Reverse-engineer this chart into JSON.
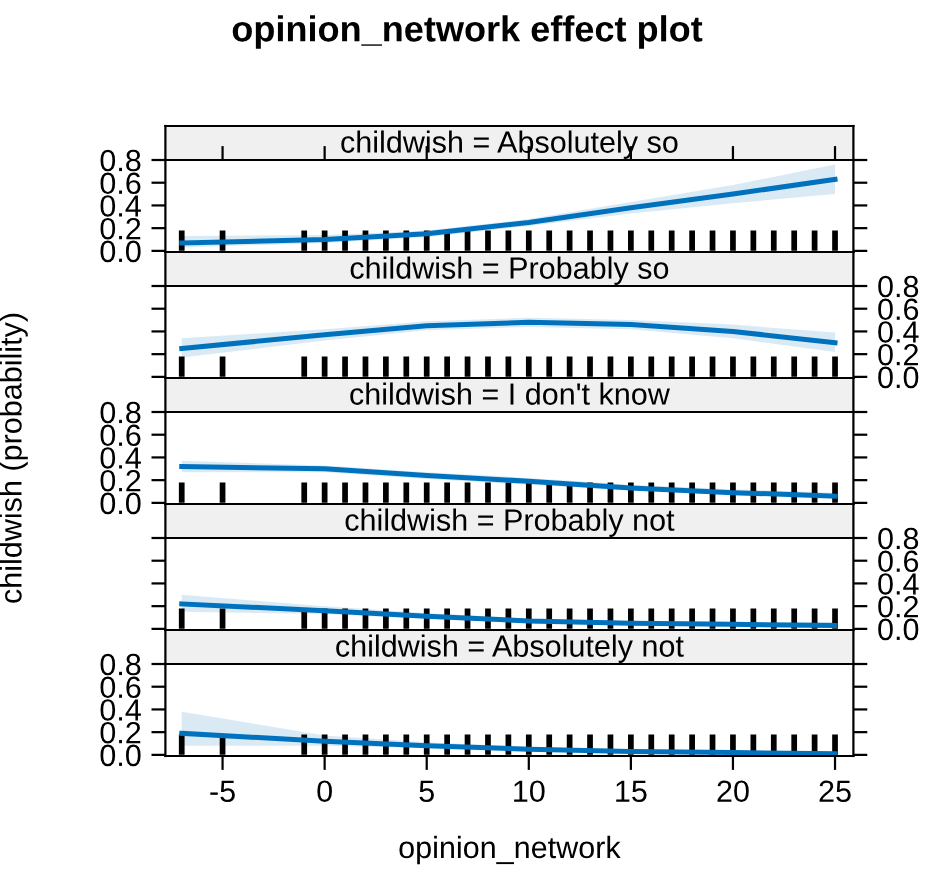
{
  "chart_data": [
    {
      "type": "line",
      "title": "opinion_network effect plot",
      "subtitle": "childwish = Absolutely so",
      "xlim": [
        -7.8,
        25.9
      ],
      "ylim": [
        -0.01,
        0.8
      ],
      "yticks": [
        {
          "value": 0,
          "label": "0.0"
        },
        {
          "value": 0.2,
          "label": "0.2"
        },
        {
          "value": 0.4,
          "label": "0.4"
        },
        {
          "value": 0.6,
          "label": "0.6"
        },
        {
          "value": 0.8,
          "label": "0.8"
        }
      ],
      "tick_labels": "y",
      "series": [
        {
          "color": "#0072bd",
          "x": [
            -7,
            0,
            5,
            10,
            15,
            20,
            25
          ],
          "values": [
            0.07,
            0.1,
            0.15,
            0.25,
            0.38,
            0.5,
            0.63
          ],
          "lower": [
            0.03,
            0.07,
            0.12,
            0.22,
            0.33,
            0.42,
            0.5
          ],
          "upper": [
            0.13,
            0.14,
            0.18,
            0.28,
            0.43,
            0.58,
            0.76
          ]
        },
        {
          "type": "bar",
          "color": "#000000",
          "x": [
            -7,
            -5,
            -1,
            0,
            1,
            2,
            3,
            4,
            5,
            6,
            7,
            8,
            9,
            10,
            11,
            12,
            13,
            14,
            15,
            16,
            17,
            18,
            19,
            20,
            21,
            22,
            23,
            24,
            25
          ],
          "values": [
            0.18,
            0.18,
            0.18,
            0.18,
            0.18,
            0.18,
            0.18,
            0.18,
            0.18,
            0.18,
            0.18,
            0.18,
            0.18,
            0.18,
            0.18,
            0.18,
            0.18,
            0.18,
            0.18,
            0.18,
            0.18,
            0.18,
            0.18,
            0.18,
            0.18,
            0.18,
            0.18,
            0.18,
            0.18
          ]
        }
      ]
    },
    {
      "type": "line",
      "subtitle": "childwish = Probably so",
      "xlim": [
        -7.8,
        25.9
      ],
      "y2lim": [
        -0.01,
        0.8
      ],
      "y2ticks": [
        {
          "value": 0,
          "label": "0.0"
        },
        {
          "value": 0.2,
          "label": "0.2"
        },
        {
          "value": 0.4,
          "label": "0.4"
        },
        {
          "value": 0.6,
          "label": "0.6"
        },
        {
          "value": 0.8,
          "label": "0.8"
        }
      ],
      "tick_labels": "y",
      "series": [
        {
          "color": "#0072bd",
          "axis": "y2",
          "x": [
            -7,
            0,
            5,
            10,
            15,
            20,
            25
          ],
          "values": [
            0.25,
            0.37,
            0.45,
            0.48,
            0.46,
            0.4,
            0.3
          ],
          "lower": [
            0.17,
            0.32,
            0.41,
            0.44,
            0.42,
            0.34,
            0.22
          ],
          "upper": [
            0.34,
            0.42,
            0.49,
            0.52,
            0.5,
            0.46,
            0.39
          ]
        },
        {
          "type": "bar",
          "axis": "y2",
          "color": "#000000",
          "x": [
            -7,
            -5,
            -1,
            0,
            1,
            2,
            3,
            4,
            5,
            6,
            7,
            8,
            9,
            10,
            11,
            12,
            13,
            14,
            15,
            16,
            17,
            18,
            19,
            20,
            21,
            22,
            23,
            24,
            25
          ],
          "values": [
            0.18,
            0.18,
            0.18,
            0.18,
            0.18,
            0.18,
            0.18,
            0.18,
            0.18,
            0.18,
            0.18,
            0.18,
            0.18,
            0.18,
            0.18,
            0.18,
            0.18,
            0.18,
            0.18,
            0.18,
            0.18,
            0.18,
            0.18,
            0.18,
            0.18,
            0.18,
            0.18,
            0.18,
            0.18
          ]
        }
      ]
    },
    {
      "type": "line",
      "subtitle": "childwish = I don't know",
      "ylabel": "childwish (probability)",
      "xlim": [
        -7.8,
        25.9
      ],
      "ylim": [
        -0.01,
        0.8
      ],
      "yticks": [
        {
          "value": 0,
          "label": "0.0"
        },
        {
          "value": 0.2,
          "label": "0.2"
        },
        {
          "value": 0.4,
          "label": "0.4"
        },
        {
          "value": 0.6,
          "label": "0.6"
        },
        {
          "value": 0.8,
          "label": "0.8"
        }
      ],
      "tick_labels": "y",
      "series": [
        {
          "color": "#0072bd",
          "x": [
            -7,
            0,
            5,
            10,
            15,
            20,
            25
          ],
          "values": [
            0.32,
            0.3,
            0.24,
            0.19,
            0.13,
            0.09,
            0.06
          ],
          "lower": [
            0.27,
            0.27,
            0.21,
            0.16,
            0.11,
            0.07,
            0.04
          ],
          "upper": [
            0.37,
            0.33,
            0.27,
            0.22,
            0.16,
            0.12,
            0.09
          ]
        },
        {
          "type": "bar",
          "color": "#000000",
          "x": [
            -7,
            -5,
            -1,
            0,
            1,
            2,
            3,
            4,
            5,
            6,
            7,
            8,
            9,
            10,
            11,
            12,
            13,
            14,
            15,
            16,
            17,
            18,
            19,
            20,
            21,
            22,
            23,
            24,
            25
          ],
          "values": [
            0.18,
            0.18,
            0.18,
            0.18,
            0.18,
            0.18,
            0.18,
            0.18,
            0.18,
            0.18,
            0.18,
            0.18,
            0.18,
            0.18,
            0.18,
            0.18,
            0.18,
            0.18,
            0.18,
            0.18,
            0.18,
            0.18,
            0.18,
            0.18,
            0.18,
            0.18,
            0.18,
            0.18,
            0.18
          ]
        }
      ]
    },
    {
      "type": "line",
      "subtitle": "childwish = Probably not",
      "xlim": [
        -7.8,
        25.9
      ],
      "y2lim": [
        -0.01,
        0.8
      ],
      "y2ticks": [
        {
          "value": 0,
          "label": "0.0"
        },
        {
          "value": 0.2,
          "label": "0.2"
        },
        {
          "value": 0.4,
          "label": "0.4"
        },
        {
          "value": 0.6,
          "label": "0.6"
        },
        {
          "value": 0.8,
          "label": "0.8"
        }
      ],
      "tick_labels": "y",
      "series": [
        {
          "color": "#0072bd",
          "axis": "y2",
          "x": [
            -7,
            0,
            5,
            10,
            15,
            20,
            25
          ],
          "values": [
            0.22,
            0.16,
            0.11,
            0.07,
            0.05,
            0.04,
            0.03
          ],
          "lower": [
            0.15,
            0.13,
            0.09,
            0.05,
            0.03,
            0.02,
            0.01
          ],
          "upper": [
            0.3,
            0.2,
            0.14,
            0.09,
            0.07,
            0.06,
            0.06
          ]
        },
        {
          "type": "bar",
          "axis": "y2",
          "color": "#000000",
          "x": [
            -7,
            -5,
            -1,
            0,
            1,
            2,
            3,
            4,
            5,
            6,
            7,
            8,
            9,
            10,
            11,
            12,
            13,
            14,
            15,
            16,
            17,
            18,
            19,
            20,
            21,
            22,
            23,
            24,
            25
          ],
          "values": [
            0.18,
            0.18,
            0.18,
            0.18,
            0.18,
            0.18,
            0.18,
            0.18,
            0.18,
            0.18,
            0.18,
            0.18,
            0.18,
            0.18,
            0.18,
            0.18,
            0.18,
            0.18,
            0.18,
            0.18,
            0.18,
            0.18,
            0.18,
            0.18,
            0.18,
            0.18,
            0.18,
            0.18,
            0.18
          ]
        }
      ]
    },
    {
      "type": "line",
      "subtitle": "childwish = Absolutely not",
      "xlabel": "opinion_network",
      "xlim": [
        -7.8,
        25.9
      ],
      "xticks": [
        -5,
        0,
        5,
        10,
        15,
        20,
        25
      ],
      "ylim": [
        -0.01,
        0.8
      ],
      "yticks": [
        {
          "value": 0,
          "label": "0.0"
        },
        {
          "value": 0.2,
          "label": "0.2"
        },
        {
          "value": 0.4,
          "label": "0.4"
        },
        {
          "value": 0.6,
          "label": "0.6"
        },
        {
          "value": 0.8,
          "label": "0.8"
        }
      ],
      "series": [
        {
          "color": "#0072bd",
          "x": [
            -7,
            0,
            5,
            10,
            15,
            20,
            25
          ],
          "values": [
            0.19,
            0.12,
            0.08,
            0.05,
            0.03,
            0.02,
            0.01
          ],
          "lower": [
            0.08,
            0.08,
            0.06,
            0.03,
            0.02,
            0.01,
            0.0
          ],
          "upper": [
            0.38,
            0.17,
            0.11,
            0.07,
            0.05,
            0.04,
            0.03
          ]
        },
        {
          "type": "bar",
          "color": "#000000",
          "x": [
            -7,
            -5,
            -1,
            0,
            1,
            2,
            3,
            4,
            5,
            6,
            7,
            8,
            9,
            10,
            11,
            12,
            13,
            14,
            15,
            16,
            17,
            18,
            19,
            20,
            21,
            22,
            23,
            24,
            25
          ],
          "values": [
            0.18,
            0.18,
            0.18,
            0.18,
            0.18,
            0.18,
            0.18,
            0.18,
            0.18,
            0.18,
            0.18,
            0.18,
            0.18,
            0.18,
            0.18,
            0.18,
            0.18,
            0.18,
            0.18,
            0.18,
            0.18,
            0.18,
            0.18,
            0.18,
            0.18,
            0.18,
            0.18,
            0.18,
            0.18
          ]
        }
      ]
    }
  ]
}
